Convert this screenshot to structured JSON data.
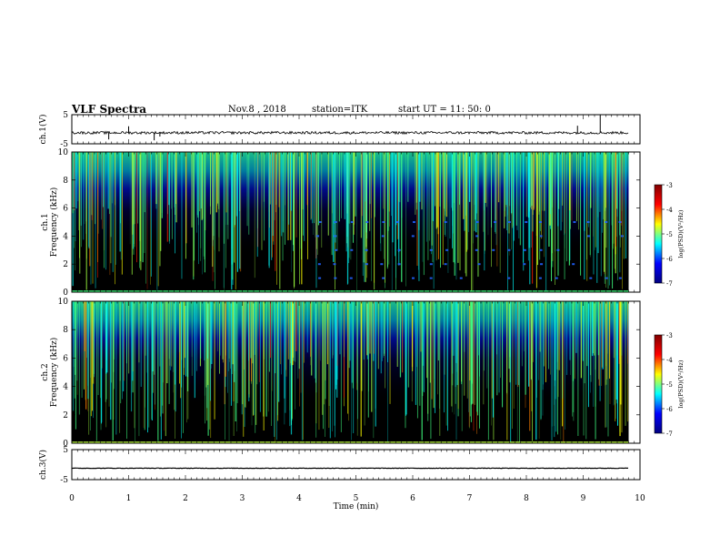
{
  "header": {
    "title": "VLF Spectra",
    "date": "Nov.8 , 2018",
    "station": "station=ITK",
    "start": "start UT = 11: 50: 0"
  },
  "chart_data": [
    {
      "type": "line",
      "panel": "waveform-ch1",
      "ylabel": "ch.1(V)",
      "yticks": [
        "5",
        "-5"
      ],
      "ylim": [
        -5,
        5
      ],
      "x_range_min": [
        0,
        10
      ],
      "baseline_v": -1.2,
      "data_end_min": 9.8,
      "spikes": [
        {
          "t": 0.65,
          "v": -3.5
        },
        {
          "t": 1.45,
          "v": -3.8
        },
        {
          "t": 1.55,
          "v": -2.5
        },
        {
          "t": 1.0,
          "v": 1.0
        },
        {
          "t": 9.3,
          "v": 4.8
        },
        {
          "t": 8.9,
          "v": 1.2
        }
      ]
    },
    {
      "type": "heatmap",
      "panel": "spectrogram-ch1",
      "ylabel": "ch.1 Frequency (kHz)",
      "ylabel_lines": [
        "ch.1",
        "Frequency (kHz)"
      ],
      "yticks": [
        "0",
        "2",
        "4",
        "6",
        "8",
        "10"
      ],
      "ylim": [
        0,
        10
      ],
      "x_range_min": [
        0,
        10
      ],
      "data_end_min": 9.8,
      "colorbar": {
        "label": "log(PSD)(V²/Hz)",
        "ticks": [
          "-3",
          "-4",
          "-5",
          "-6",
          "-7"
        ],
        "range": [
          -7,
          -3
        ]
      }
    },
    {
      "type": "heatmap",
      "panel": "spectrogram-ch2",
      "ylabel": "ch.2 Frequency (kHz)",
      "ylabel_lines": [
        "ch.2",
        "Frequency (kHz)"
      ],
      "yticks": [
        "0",
        "2",
        "4",
        "6",
        "8",
        "10"
      ],
      "ylim": [
        0,
        10
      ],
      "x_range_min": [
        0,
        10
      ],
      "data_end_min": 9.8,
      "colorbar": {
        "label": "log(PSD)(V²/Hz)",
        "ticks": [
          "-3",
          "-4",
          "-5",
          "-6",
          "-7"
        ],
        "range": [
          -7,
          -3
        ]
      }
    },
    {
      "type": "line",
      "panel": "waveform-ch3",
      "ylabel": "ch.3(V)",
      "yticks": [
        "5",
        "-5"
      ],
      "ylim": [
        -5,
        5
      ],
      "x_range_min": [
        0,
        10
      ],
      "baseline_v": -1.2,
      "data_end_min": 9.8
    }
  ],
  "xaxis": {
    "label": "Time (min)",
    "ticks": [
      "0",
      "1",
      "2",
      "3",
      "4",
      "5",
      "6",
      "7",
      "8",
      "9",
      "10"
    ]
  },
  "colors": {
    "jet": [
      "#000080",
      "#0000ff",
      "#00ffff",
      "#ffff00",
      "#ff0000",
      "#800000"
    ],
    "background": "#000000",
    "trace": "#000000"
  }
}
